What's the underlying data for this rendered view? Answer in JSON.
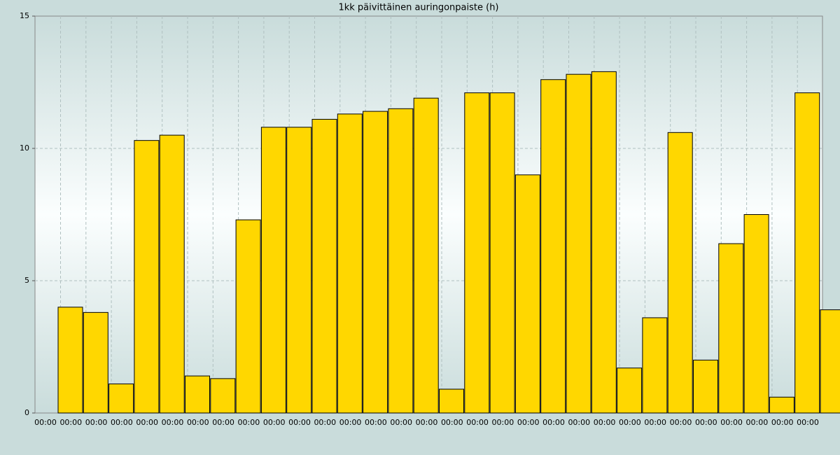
{
  "chart_data": {
    "type": "bar",
    "title": "1kk päivittäinen auringonpaiste (h)",
    "categories": [
      "00:00",
      "00:00",
      "00:00",
      "00:00",
      "00:00",
      "00:00",
      "00:00",
      "00:00",
      "00:00",
      "00:00",
      "00:00",
      "00:00",
      "00:00",
      "00:00",
      "00:00",
      "00:00",
      "00:00",
      "00:00",
      "00:00",
      "00:00",
      "00:00",
      "00:00",
      "00:00",
      "00:00",
      "00:00",
      "00:00",
      "00:00",
      "00:00",
      "00:00",
      "00:00",
      "00:00"
    ],
    "values": [
      4.0,
      3.8,
      1.1,
      10.3,
      10.5,
      1.4,
      1.3,
      7.3,
      10.8,
      10.8,
      11.1,
      11.3,
      11.4,
      11.5,
      11.9,
      0.9,
      12.1,
      12.1,
      9.0,
      12.6,
      12.8,
      12.9,
      1.7,
      3.6,
      10.6,
      2.0,
      6.4,
      7.5,
      0.6,
      12.1,
      3.9
    ],
    "color": "#ffd700",
    "ylim": [
      0,
      15
    ],
    "yticks": [
      0,
      5,
      10,
      15
    ],
    "grid": true
  }
}
